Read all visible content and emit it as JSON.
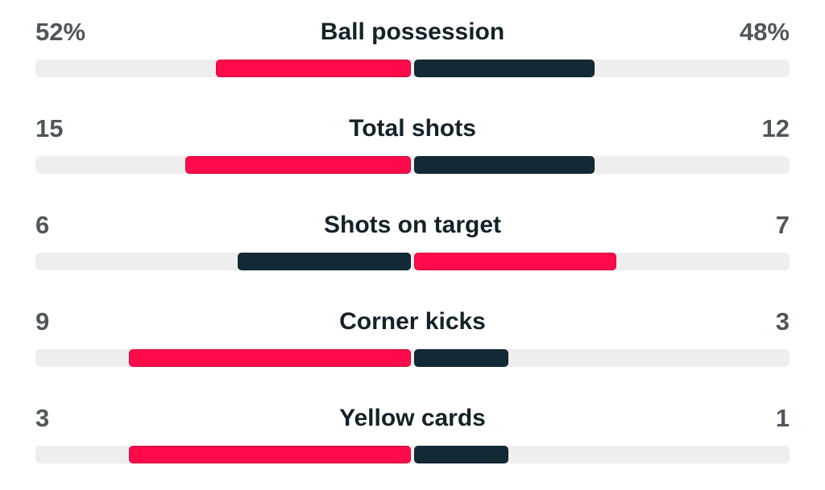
{
  "colors": {
    "leading": "#ff0a4a",
    "trailing": "#132a36",
    "track": "#eeeeee"
  },
  "stats": [
    {
      "label": "Ball possession",
      "home_display": "52%",
      "away_display": "48%",
      "home": 52,
      "away": 48,
      "max": 100
    },
    {
      "label": "Total shots",
      "home_display": "15",
      "away_display": "12",
      "home": 15,
      "away": 12,
      "max": 25
    },
    {
      "label": "Shots on target",
      "home_display": "6",
      "away_display": "7",
      "home": 6,
      "away": 7,
      "max": 13
    },
    {
      "label": "Corner kicks",
      "home_display": "9",
      "away_display": "3",
      "home": 9,
      "away": 3,
      "max": 12
    },
    {
      "label": "Yellow cards",
      "home_display": "3",
      "away_display": "1",
      "home": 3,
      "away": 1,
      "max": 4
    }
  ]
}
